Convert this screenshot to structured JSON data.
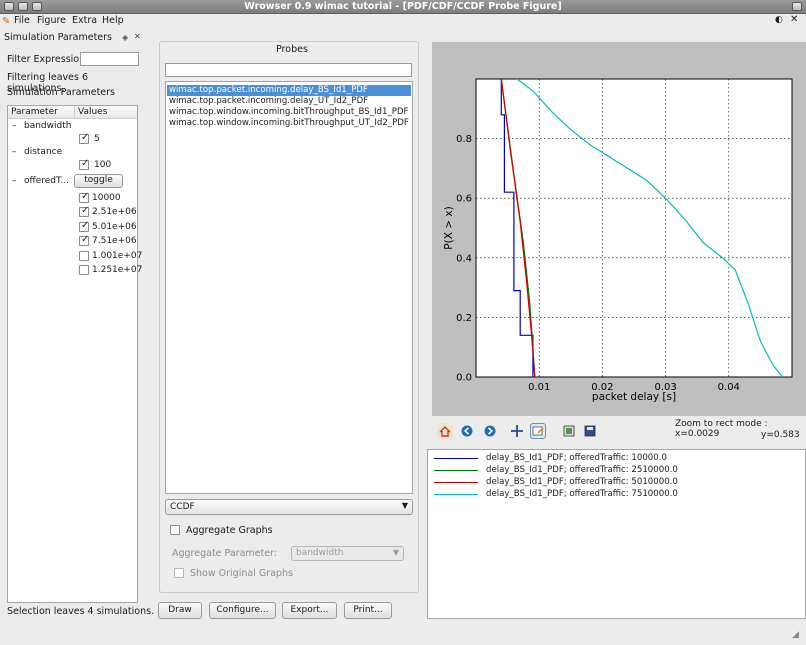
{
  "window": {
    "title": "Wrowser 0.9 wimac tutorial - [PDF/CDF/CCDF Probe Figure]"
  },
  "menu": {
    "items": [
      "File",
      "Figure",
      "Extra",
      "Help"
    ]
  },
  "sim_params_panel": {
    "title": "Simulation Parameters",
    "filter_label": "Filter Expression:",
    "filter_value": "",
    "filter_status": "Filtering leaves 6 simulations.",
    "section_label": "Simulation Parameters",
    "tree_headers": [
      "Parameter",
      "Values"
    ],
    "parameters": [
      {
        "name": "bandwidth",
        "values": [
          {
            "label": "5",
            "checked": true
          }
        ]
      },
      {
        "name": "distance",
        "values": [
          {
            "label": "100",
            "checked": true
          }
        ]
      },
      {
        "name": "offeredT...",
        "toggle_label": "toggle",
        "values": [
          {
            "label": "10000",
            "checked": true
          },
          {
            "label": "2.51e+06",
            "checked": true
          },
          {
            "label": "5.01e+06",
            "checked": true
          },
          {
            "label": "7.51e+06",
            "checked": true
          },
          {
            "label": "1.001e+07",
            "checked": false
          },
          {
            "label": "1.251e+07",
            "checked": false
          }
        ]
      }
    ],
    "selection_status": "Selection leaves 4 simulations."
  },
  "probes_panel": {
    "title": "Probes",
    "filter_value": "",
    "items": [
      {
        "label": "wimac.top.packet.incoming.delay_BS_Id1_PDF",
        "selected": true
      },
      {
        "label": "wimac.top.packet.incoming.delay_UT_Id2_PDF",
        "selected": false
      },
      {
        "label": "wimac.top.window.incoming.bitThroughput_BS_Id1_PDF",
        "selected": false
      },
      {
        "label": "wimac.top.window.incoming.bitThroughput_UT_Id2_PDF",
        "selected": false
      }
    ],
    "plot_type": "CCDF",
    "aggregate_label": "Aggregate Graphs",
    "aggregate_checked": false,
    "aggregate_param_label": "Aggregate Parameter:",
    "aggregate_param_value": "bandwidth",
    "show_original_label": "Show Original Graphs",
    "show_original_checked": false
  },
  "buttons": {
    "draw": "Draw",
    "configure": "Configure...",
    "export": "Export...",
    "print": "Print..."
  },
  "toolbar": {
    "status_line1": "Zoom to rect mode : x=0.0029",
    "status_line2": "y=0.583",
    "icons": [
      "home-icon",
      "back-icon",
      "forward-icon",
      "pan-icon",
      "zoom-icon",
      "subplots-icon",
      "save-icon"
    ]
  },
  "colors": {
    "series": [
      "#0000cc",
      "#007a00",
      "#cc0000",
      "#00bcbc"
    ],
    "selection": "#4a90d9"
  },
  "chart_data": {
    "type": "line",
    "title": "",
    "xlabel": "packet delay [s]",
    "ylabel": "P(X > x)",
    "xlim": [
      0.0,
      0.05
    ],
    "ylim": [
      0.0,
      1.0
    ],
    "xticks": [
      0.01,
      0.02,
      0.03,
      0.04
    ],
    "xtick_labels": [
      "0.01",
      "0.02",
      "0.03",
      "0.04"
    ],
    "yticks": [
      0.0,
      0.2,
      0.4,
      0.6,
      0.8
    ],
    "ytick_labels": [
      "0.0",
      "0.2",
      "0.4",
      "0.6",
      "0.8"
    ],
    "grid": true,
    "series": [
      {
        "name": "delay_BS_Id1_PDF; offeredTraffic: 10000.0",
        "x": [
          0.004,
          0.004,
          0.0045,
          0.0045,
          0.006,
          0.006,
          0.007,
          0.007,
          0.0075,
          0.0075,
          0.0085,
          0.0085,
          0.009,
          0.009
        ],
        "y": [
          1.0,
          0.88,
          0.88,
          0.62,
          0.62,
          0.29,
          0.29,
          0.14,
          0.14,
          0.14,
          0.14,
          0.14,
          0.14,
          0.0
        ]
      },
      {
        "name": "delay_BS_Id1_PDF; offeredTraffic: 2510000.0",
        "x": [
          0.004,
          0.006,
          0.0075,
          0.0085,
          0.009,
          0.0093
        ],
        "y": [
          1.0,
          0.68,
          0.45,
          0.25,
          0.1,
          0.0
        ]
      },
      {
        "name": "delay_BS_Id1_PDF; offeredTraffic: 5010000.0",
        "x": [
          0.004,
          0.0055,
          0.007,
          0.008,
          0.0088,
          0.0093
        ],
        "y": [
          1.0,
          0.75,
          0.52,
          0.32,
          0.14,
          0.0
        ]
      },
      {
        "name": "delay_BS_Id1_PDF; offeredTraffic: 7510000.0",
        "x": [
          0.0065,
          0.009,
          0.012,
          0.015,
          0.018,
          0.021,
          0.024,
          0.027,
          0.03,
          0.033,
          0.036,
          0.039,
          0.041,
          0.043,
          0.045,
          0.047,
          0.0485
        ],
        "y": [
          1.0,
          0.96,
          0.89,
          0.83,
          0.78,
          0.74,
          0.7,
          0.66,
          0.6,
          0.53,
          0.45,
          0.4,
          0.36,
          0.25,
          0.12,
          0.04,
          0.0
        ]
      }
    ]
  }
}
